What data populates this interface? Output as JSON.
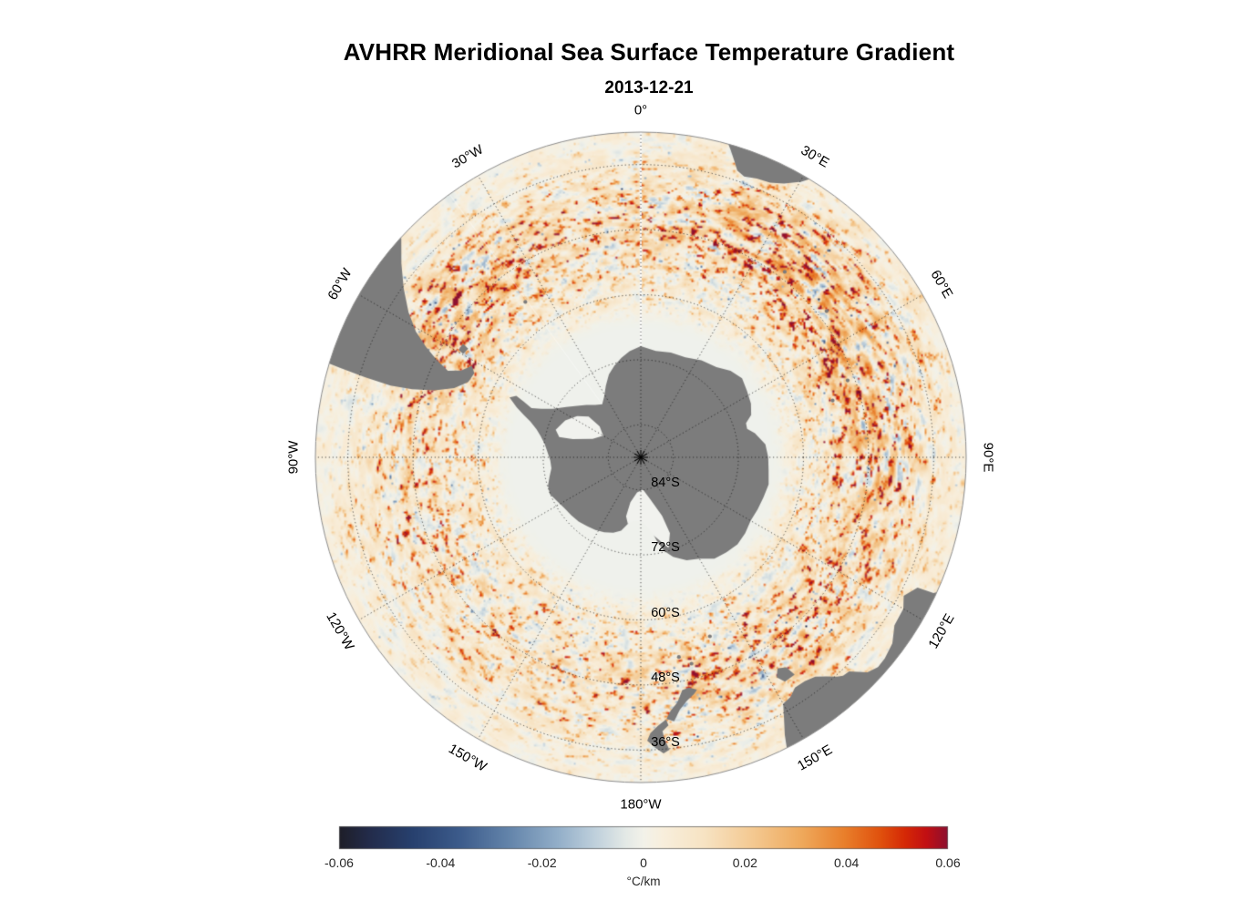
{
  "chart_data": {
    "type": "heatmap",
    "projection": "south_polar_stereographic",
    "title": "AVHRR Meridional Sea Surface Temperature Gradient",
    "subtitle": "2013-12-21",
    "outer_latitude": -30,
    "value_range": [
      -0.06,
      0.06
    ],
    "meridians": [
      {
        "lon": 0,
        "label": "0°"
      },
      {
        "lon": 30,
        "label": "30°E"
      },
      {
        "lon": 60,
        "label": "60°E"
      },
      {
        "lon": 90,
        "label": "90°E"
      },
      {
        "lon": 120,
        "label": "120°E"
      },
      {
        "lon": 150,
        "label": "150°E"
      },
      {
        "lon": 180,
        "label": "180°W"
      },
      {
        "lon": -150,
        "label": "150°W"
      },
      {
        "lon": -120,
        "label": "120°W"
      },
      {
        "lon": -90,
        "label": "90°W"
      },
      {
        "lon": -60,
        "label": "60°W"
      },
      {
        "lon": -30,
        "label": "30°W"
      }
    ],
    "parallels": [
      {
        "lat": -84,
        "label": "84°S"
      },
      {
        "lat": -72,
        "label": "72°S"
      },
      {
        "lat": -60,
        "label": "60°S"
      },
      {
        "lat": -48,
        "label": "48°S"
      },
      {
        "lat": -36,
        "label": "36°S"
      }
    ],
    "colorbar": {
      "min": -0.06,
      "max": 0.06,
      "ticks": [
        "-0.06",
        "-0.04",
        "-0.02",
        "0",
        "0.02",
        "0.04",
        "0.06"
      ],
      "tick_values": [
        -0.06,
        -0.04,
        -0.02,
        0,
        0.02,
        0.04,
        0.06
      ],
      "label": "°C/km",
      "stops": [
        [
          0,
          "#1e1e28"
        ],
        [
          0.05,
          "#232c4b"
        ],
        [
          0.12,
          "#27406e"
        ],
        [
          0.2,
          "#3d5c8c"
        ],
        [
          0.28,
          "#6485ab"
        ],
        [
          0.36,
          "#93afc9"
        ],
        [
          0.42,
          "#bfd0dc"
        ],
        [
          0.47,
          "#e3e9e6"
        ],
        [
          0.5,
          "#f3f2ea"
        ],
        [
          0.53,
          "#f8efdd"
        ],
        [
          0.6,
          "#f7e3c3"
        ],
        [
          0.68,
          "#f4c991"
        ],
        [
          0.76,
          "#efa95c"
        ],
        [
          0.83,
          "#e97f2b"
        ],
        [
          0.89,
          "#e0500d"
        ],
        [
          0.93,
          "#d52806"
        ],
        [
          0.965,
          "#c20f13"
        ],
        [
          1,
          "#8c1030"
        ]
      ]
    },
    "colors": {
      "land": "#7c7c7c",
      "ice_shelf": "#f1f2ee",
      "sea_ice": "#eef1ec",
      "background": "#ffffff",
      "graticule": "#000000"
    },
    "land": {
      "antarctica": [
        [
          0,
          -69.5
        ],
        [
          8,
          -70.2
        ],
        [
          16,
          -69.9
        ],
        [
          24,
          -69.8
        ],
        [
          32,
          -68.9
        ],
        [
          40,
          -68.3
        ],
        [
          46,
          -67
        ],
        [
          52,
          -66.3
        ],
        [
          58,
          -66.9
        ],
        [
          64,
          -67.4
        ],
        [
          69,
          -68.2
        ],
        [
          72,
          -69.6
        ],
        [
          75,
          -69.7
        ],
        [
          78,
          -68.5
        ],
        [
          84,
          -66.9
        ],
        [
          90,
          -66.5
        ],
        [
          96,
          -66.3
        ],
        [
          102,
          -65.9
        ],
        [
          108,
          -66.2
        ],
        [
          114,
          -66.4
        ],
        [
          120,
          -66.6
        ],
        [
          126,
          -66.2
        ],
        [
          132,
          -66
        ],
        [
          138,
          -66.4
        ],
        [
          144,
          -66.9
        ],
        [
          150,
          -68.4
        ],
        [
          156,
          -69.2
        ],
        [
          162,
          -70.7
        ],
        [
          166,
          -72.2
        ],
        [
          169,
          -74.2
        ],
        [
          173,
          -77
        ],
        [
          178,
          -78.3
        ],
        [
          184,
          -78.4
        ],
        [
          190,
          -77.8
        ],
        [
          195,
          -76
        ],
        [
          200,
          -75.2
        ],
        [
          206,
          -74.6
        ],
        [
          212,
          -74.2
        ],
        [
          218,
          -73.9
        ],
        [
          224,
          -73.5
        ],
        [
          230,
          -73.3
        ],
        [
          236,
          -73.1
        ],
        [
          242,
          -72.6
        ],
        [
          248,
          -71.9
        ],
        [
          253,
          -72.1
        ],
        [
          258,
          -72.8
        ],
        [
          263,
          -73.4
        ],
        [
          268,
          -73.3
        ],
        [
          273,
          -72.8
        ],
        [
          278,
          -72.1
        ],
        [
          282,
          -71.1
        ],
        [
          285,
          -70.1
        ],
        [
          288,
          -68.6
        ],
        [
          290,
          -67
        ],
        [
          292,
          -65.3
        ],
        [
          294.5,
          -63.4
        ],
        [
          296.3,
          -64.4
        ],
        [
          295.4,
          -66.2
        ],
        [
          294.2,
          -67.9
        ],
        [
          296,
          -69.6
        ],
        [
          299,
          -71.5
        ],
        [
          304,
          -73.4
        ],
        [
          309,
          -74.9
        ],
        [
          314,
          -76.1
        ],
        [
          319,
          -77.2
        ],
        [
          324,
          -77.9
        ],
        [
          329,
          -76.9
        ],
        [
          334,
          -75.3
        ],
        [
          339,
          -73.6
        ],
        [
          344,
          -72.4
        ],
        [
          349,
          -71.3
        ],
        [
          354,
          -70.3
        ]
      ],
      "ross_ice_shelf": [
        [
          163,
          -72.5
        ],
        [
          171,
          -75.5
        ],
        [
          178,
          -78
        ],
        [
          185,
          -78.2
        ],
        [
          191,
          -77.5
        ],
        [
          194,
          -78.8
        ],
        [
          193,
          -81.5
        ],
        [
          186,
          -83.5
        ],
        [
          176,
          -84
        ],
        [
          167,
          -82
        ],
        [
          160,
          -78.5
        ],
        [
          159,
          -75
        ]
      ],
      "ronne_ice_shelf": [
        [
          288,
          -73.5
        ],
        [
          296,
          -74.5
        ],
        [
          303,
          -76
        ],
        [
          308,
          -77.8
        ],
        [
          307,
          -80.5
        ],
        [
          300,
          -82
        ],
        [
          291,
          -80.5
        ],
        [
          285,
          -77
        ],
        [
          284,
          -74.5
        ]
      ],
      "south_america": [
        [
          287,
          -27
        ],
        [
          286.6,
          -32
        ],
        [
          286.2,
          -37
        ],
        [
          286,
          -42
        ],
        [
          286.6,
          -46
        ],
        [
          288,
          -50
        ],
        [
          290.4,
          -53.3
        ],
        [
          293.6,
          -55.3
        ],
        [
          296.8,
          -55.6
        ],
        [
          298.5,
          -54.6
        ],
        [
          295.8,
          -53.2
        ],
        [
          294.2,
          -51
        ],
        [
          295.4,
          -48.5
        ],
        [
          297.2,
          -45.5
        ],
        [
          299.2,
          -42.5
        ],
        [
          302,
          -39.5
        ],
        [
          305.5,
          -36.3
        ],
        [
          309,
          -33.2
        ],
        [
          312.4,
          -30.2
        ],
        [
          314.5,
          -27
        ]
      ],
      "falkland_islands": [
        [
          300.6,
          -51
        ],
        [
          302.6,
          -51.1
        ],
        [
          302.2,
          -52.4
        ],
        [
          300.2,
          -52.1
        ]
      ],
      "africa": [
        [
          13,
          -24
        ],
        [
          14.6,
          -28.6
        ],
        [
          16.2,
          -30.8
        ],
        [
          17.6,
          -32.8
        ],
        [
          18.6,
          -34.2
        ],
        [
          20.2,
          -34.8
        ],
        [
          22.6,
          -34.3
        ],
        [
          25.2,
          -34
        ],
        [
          27.6,
          -33
        ],
        [
          30.2,
          -31.2
        ],
        [
          31.8,
          -29.3
        ],
        [
          33.2,
          -25
        ],
        [
          23,
          -17
        ]
      ],
      "australia": [
        [
          111,
          -24
        ],
        [
          113,
          -28
        ],
        [
          114.9,
          -30.5
        ],
        [
          115.2,
          -33.6
        ],
        [
          117.8,
          -35.2
        ],
        [
          120,
          -34.1
        ],
        [
          123.5,
          -33.9
        ],
        [
          126.5,
          -32.3
        ],
        [
          129.5,
          -31.7
        ],
        [
          131.5,
          -31.6
        ],
        [
          133.5,
          -32.4
        ],
        [
          135.8,
          -34.9
        ],
        [
          137.2,
          -35.1
        ],
        [
          138.2,
          -35.7
        ],
        [
          139.8,
          -37.1
        ],
        [
          141.5,
          -38.3
        ],
        [
          143.8,
          -38.8
        ],
        [
          146.2,
          -38.9
        ],
        [
          148,
          -37.9
        ],
        [
          150,
          -37.5
        ],
        [
          151.2,
          -35.2
        ],
        [
          152.6,
          -32.3
        ],
        [
          153.8,
          -28.5
        ],
        [
          154.5,
          -24
        ]
      ],
      "tasmania": [
        [
          144.7,
          -40.9
        ],
        [
          147.3,
          -40.8
        ],
        [
          148.3,
          -42.3
        ],
        [
          147.1,
          -43.6
        ],
        [
          145.3,
          -42.9
        ]
      ],
      "new_zealand_south": [
        [
          166.4,
          -45.9
        ],
        [
          168.2,
          -46.6
        ],
        [
          169.9,
          -46.4
        ],
        [
          171.5,
          -44.3
        ],
        [
          173.3,
          -42.9
        ],
        [
          174.4,
          -41.5
        ],
        [
          172.8,
          -40.9
        ],
        [
          171.2,
          -42.9
        ],
        [
          169.4,
          -44.2
        ],
        [
          167.2,
          -45.3
        ]
      ],
      "new_zealand_north": [
        [
          174.5,
          -41.4
        ],
        [
          176.3,
          -40.4
        ],
        [
          178,
          -39.1
        ],
        [
          178.7,
          -37.7
        ],
        [
          177.1,
          -36.3
        ],
        [
          175.6,
          -35.2
        ],
        [
          174.4,
          -35.8
        ],
        [
          175.1,
          -37.6
        ],
        [
          175.5,
          -39.3
        ],
        [
          174.1,
          -40.3
        ]
      ],
      "small_islands": [
        [
          158.9,
          -54.6
        ],
        [
          169.2,
          -52.5
        ],
        [
          166.2,
          -50.8
        ],
        [
          73.5,
          -53.1
        ],
        [
          69.6,
          -49.3
        ],
        [
          323.4,
          -54.3
        ],
        [
          37.8,
          -46.7
        ],
        [
          51.8,
          -46.4
        ]
      ]
    }
  }
}
